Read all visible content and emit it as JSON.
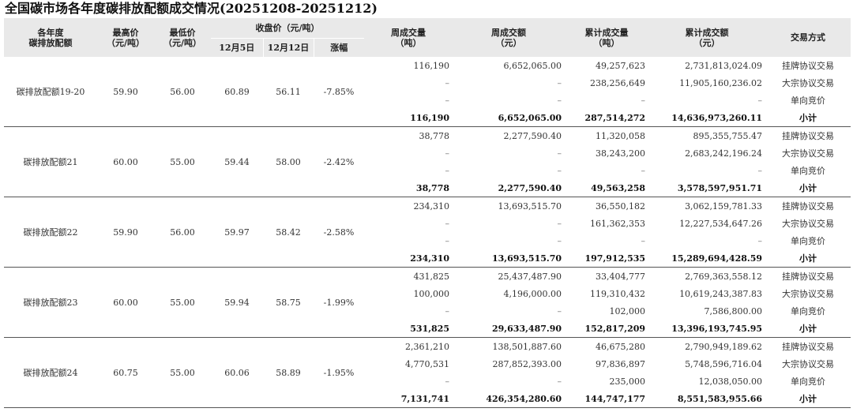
{
  "title": "全国碳市场各年度碳排放配额成交情况(20251208-20251212)",
  "headers": {
    "name": "各年度碳排放配额",
    "max": "最高价（元/吨）",
    "min": "最低价（元/吨）",
    "close": "收盘价（元/吨）",
    "date1": "12月5日",
    "date2": "12月12日",
    "change": "涨幅",
    "week_vol": "周成交量（吨）",
    "week_amt": "周成交额（元）",
    "cum_vol": "累计成交量（吨）",
    "cum_amt": "累计成交额（元）",
    "method": "交易方式"
  },
  "groups": [
    {
      "name": "碳排放配额19-20",
      "max": "59.90",
      "min": "56.00",
      "date1": "60.89",
      "date2": "56.11",
      "change": "-7.85%",
      "rows": [
        {
          "wv": "116,190",
          "wa": "6,652,065.00",
          "cv": "49,257,623",
          "ca": "2,731,813,024.09",
          "m": "挂牌协议交易"
        },
        {
          "wv": "–",
          "wa": "–",
          "cv": "238,256,649",
          "ca": "11,905,160,236.02",
          "m": "大宗协议交易"
        },
        {
          "wv": "–",
          "wa": "–",
          "cv": "–",
          "ca": "–",
          "m": "单向竞价"
        }
      ],
      "subtotal": {
        "wv": "116,190",
        "wa": "6,652,065.00",
        "cv": "287,514,272",
        "ca": "14,636,973,260.11",
        "m": "小计"
      }
    },
    {
      "name": "碳排放配额21",
      "max": "60.00",
      "min": "55.00",
      "date1": "59.44",
      "date2": "58.00",
      "change": "-2.42%",
      "rows": [
        {
          "wv": "38,778",
          "wa": "2,277,590.40",
          "cv": "11,320,058",
          "ca": "895,355,755.47",
          "m": "挂牌协议交易"
        },
        {
          "wv": "–",
          "wa": "–",
          "cv": "38,243,200",
          "ca": "2,683,242,196.24",
          "m": "大宗协议交易"
        },
        {
          "wv": "–",
          "wa": "–",
          "cv": "–",
          "ca": "–",
          "m": "单向竞价"
        }
      ],
      "subtotal": {
        "wv": "38,778",
        "wa": "2,277,590.40",
        "cv": "49,563,258",
        "ca": "3,578,597,951.71",
        "m": "小计"
      }
    },
    {
      "name": "碳排放配额22",
      "max": "59.90",
      "min": "56.00",
      "date1": "59.97",
      "date2": "58.42",
      "change": "-2.58%",
      "rows": [
        {
          "wv": "234,310",
          "wa": "13,693,515.70",
          "cv": "36,550,182",
          "ca": "3,062,159,781.33",
          "m": "挂牌协议交易"
        },
        {
          "wv": "–",
          "wa": "–",
          "cv": "161,362,353",
          "ca": "12,227,534,647.26",
          "m": "大宗协议交易"
        },
        {
          "wv": "–",
          "wa": "–",
          "cv": "–",
          "ca": "–",
          "m": "单向竞价"
        }
      ],
      "subtotal": {
        "wv": "234,310",
        "wa": "13,693,515.70",
        "cv": "197,912,535",
        "ca": "15,289,694,428.59",
        "m": "小计"
      }
    },
    {
      "name": "碳排放配额23",
      "max": "60.00",
      "min": "55.00",
      "date1": "59.94",
      "date2": "58.75",
      "change": "-1.99%",
      "rows": [
        {
          "wv": "431,825",
          "wa": "25,437,487.90",
          "cv": "33,404,777",
          "ca": "2,769,363,558.12",
          "m": "挂牌协议交易"
        },
        {
          "wv": "100,000",
          "wa": "4,196,000.00",
          "cv": "119,310,432",
          "ca": "10,619,243,387.83",
          "m": "大宗协议交易"
        },
        {
          "wv": "–",
          "wa": "–",
          "cv": "102,000",
          "ca": "7,586,800.00",
          "m": "单向竞价"
        }
      ],
      "subtotal": {
        "wv": "531,825",
        "wa": "29,633,487.90",
        "cv": "152,817,209",
        "ca": "13,396,193,745.95",
        "m": "小计"
      }
    },
    {
      "name": "碳排放配额24",
      "max": "60.75",
      "min": "55.00",
      "date1": "60.06",
      "date2": "58.89",
      "change": "-1.95%",
      "rows": [
        {
          "wv": "2,361,210",
          "wa": "138,501,887.60",
          "cv": "46,675,280",
          "ca": "2,790,949,189.62",
          "m": "挂牌协议交易"
        },
        {
          "wv": "4,770,531",
          "wa": "287,852,393.00",
          "cv": "97,836,897",
          "ca": "5,748,596,716.04",
          "m": "大宗协议交易"
        },
        {
          "wv": "–",
          "wa": "–",
          "cv": "235,000",
          "ca": "12,038,050.00",
          "m": "单向竞价"
        }
      ],
      "subtotal": {
        "wv": "7,131,741",
        "wa": "426,354,280.60",
        "cv": "144,747,177",
        "ca": "8,551,583,955.66",
        "m": "小计"
      }
    }
  ]
}
